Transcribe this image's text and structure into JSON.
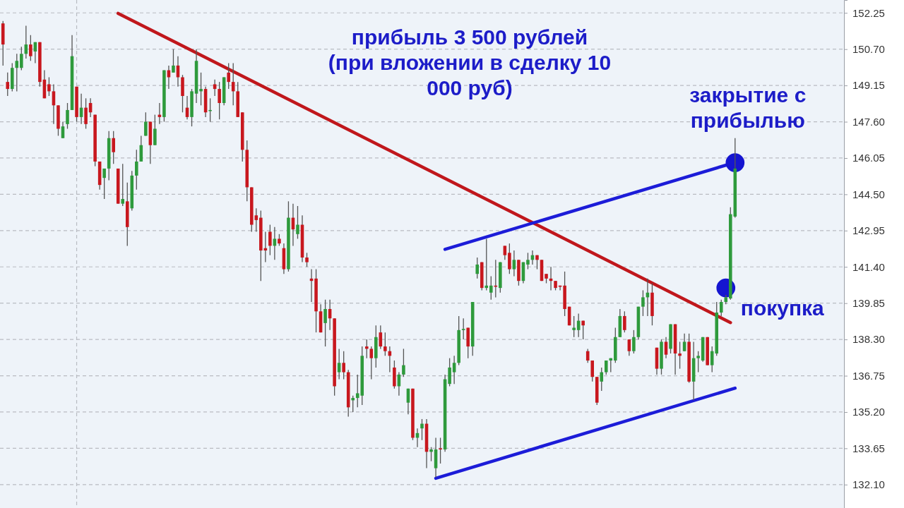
{
  "chart_data": {
    "type": "candlestick",
    "categories": [
      null,
      null,
      null,
      null,
      null,
      null,
      null,
      null,
      null,
      null,
      null,
      null,
      null,
      null,
      null,
      null,
      null,
      null,
      null,
      null,
      null,
      null,
      null,
      null,
      null,
      null,
      null,
      null,
      null,
      null,
      null,
      null,
      null,
      null,
      null,
      null,
      null,
      null,
      null,
      null,
      null,
      null,
      null,
      null,
      null,
      null,
      null,
      null,
      null,
      null,
      null,
      null,
      null,
      null,
      null,
      null,
      null,
      null,
      null,
      null,
      null,
      null,
      null,
      null,
      null,
      null,
      null,
      null,
      null,
      null,
      null,
      null,
      null,
      null,
      null,
      null,
      null,
      null,
      null,
      null,
      null,
      null,
      null,
      null,
      null,
      null,
      null,
      null,
      null,
      null,
      null,
      null,
      null,
      null,
      null,
      null,
      null,
      null,
      null,
      null,
      null,
      null,
      null,
      null,
      null,
      null,
      null,
      null,
      null,
      null,
      null,
      null,
      null,
      null,
      null,
      null,
      null,
      null,
      null,
      null,
      null,
      null,
      null,
      null,
      null,
      null,
      null,
      null,
      null,
      null,
      null,
      null,
      null,
      null,
      null,
      null,
      null,
      null,
      null,
      null,
      null,
      null,
      null,
      null,
      null,
      null,
      null,
      null,
      null,
      null,
      null,
      null,
      null,
      null,
      null,
      null,
      null,
      null,
      null,
      null,
      null,
      null,
      null,
      null,
      null,
      null,
      null,
      null,
      null,
      null,
      null,
      null,
      null,
      null,
      null,
      null,
      null,
      null,
      null,
      null,
      null,
      null,
      null
    ],
    "ohlc": [
      [
        151.8,
        151.9,
        150.0,
        150.9
      ],
      [
        149.3,
        149.7,
        148.7,
        149.0
      ],
      [
        149.0,
        150.1,
        148.9,
        149.9
      ],
      [
        149.9,
        150.5,
        148.9,
        150.2
      ],
      [
        149.9,
        150.8,
        149.8,
        150.5
      ],
      [
        150.5,
        151.7,
        150.3,
        150.9
      ],
      [
        150.9,
        151.3,
        150.2,
        150.4
      ],
      [
        150.6,
        151.0,
        150.1,
        151.0
      ],
      [
        151.0,
        151.0,
        149.1,
        149.3
      ],
      [
        149.4,
        149.8,
        148.6,
        148.6
      ],
      [
        149.2,
        149.5,
        148.7,
        148.9
      ],
      [
        148.9,
        149.2,
        147.5,
        148.3
      ],
      [
        148.3,
        148.3,
        147.0,
        147.3
      ],
      [
        146.9,
        147.6,
        146.9,
        147.4
      ],
      [
        147.5,
        148.4,
        147.3,
        148.1
      ],
      [
        148.1,
        151.3,
        148.1,
        150.4
      ],
      [
        149.1,
        149.1,
        147.6,
        147.8
      ],
      [
        147.8,
        148.8,
        147.5,
        148.2
      ],
      [
        148.2,
        148.6,
        147.3,
        147.5
      ],
      [
        148.4,
        148.6,
        147.8,
        148.0
      ],
      [
        147.9,
        147.9,
        145.7,
        145.9
      ],
      [
        145.9,
        145.9,
        144.7,
        144.9
      ],
      [
        145.2,
        145.6,
        144.3,
        145.6
      ],
      [
        145.6,
        147.2,
        145.1,
        146.9
      ],
      [
        146.9,
        147.2,
        145.8,
        146.3
      ],
      [
        145.6,
        145.6,
        144.1,
        144.1
      ],
      [
        144.1,
        145.8,
        144.0,
        144.3
      ],
      [
        144.2,
        145.0,
        142.3,
        143.1
      ],
      [
        143.9,
        145.5,
        143.8,
        145.3
      ],
      [
        145.3,
        146.4,
        144.7,
        145.9
      ],
      [
        145.9,
        147.0,
        145.9,
        146.6
      ],
      [
        147.0,
        148.0,
        147.0,
        147.6
      ],
      [
        147.6,
        147.6,
        145.8,
        146.6
      ],
      [
        146.6,
        147.9,
        146.6,
        147.3
      ],
      [
        147.9,
        148.4,
        147.5,
        147.8
      ],
      [
        147.8,
        149.8,
        147.6,
        149.8
      ],
      [
        149.8,
        150.0,
        149.0,
        149.5
      ],
      [
        149.7,
        150.7,
        149.7,
        150.0
      ],
      [
        150.0,
        150.4,
        149.1,
        149.5
      ],
      [
        149.5,
        149.6,
        148.0,
        148.7
      ],
      [
        148.2,
        148.7,
        147.7,
        147.8
      ],
      [
        147.8,
        149.0,
        147.4,
        148.9
      ],
      [
        148.8,
        150.7,
        148.4,
        150.2
      ],
      [
        148.9,
        149.7,
        148.3,
        149.0
      ],
      [
        149.0,
        149.1,
        147.8,
        148.0
      ],
      [
        148.1,
        148.6,
        147.6,
        148.1
      ],
      [
        149.2,
        149.4,
        148.7,
        149.0
      ],
      [
        149.0,
        149.3,
        147.7,
        148.4
      ],
      [
        148.4,
        149.5,
        148.3,
        149.5
      ],
      [
        149.7,
        150.1,
        149.0,
        149.3
      ],
      [
        149.3,
        150.1,
        148.3,
        148.9
      ],
      [
        148.9,
        149.3,
        147.8,
        147.8
      ],
      [
        148.0,
        148.0,
        145.9,
        146.4
      ],
      [
        146.4,
        146.8,
        144.2,
        144.8
      ],
      [
        144.8,
        144.8,
        142.9,
        143.2
      ],
      [
        143.6,
        143.9,
        142.9,
        143.4
      ],
      [
        143.5,
        143.8,
        140.8,
        142.1
      ],
      [
        142.2,
        142.9,
        141.6,
        142.1
      ],
      [
        142.9,
        143.2,
        141.9,
        142.3
      ],
      [
        142.3,
        143.1,
        141.7,
        142.6
      ],
      [
        142.6,
        142.8,
        142.3,
        142.4
      ],
      [
        142.2,
        142.4,
        141.1,
        141.3
      ],
      [
        141.3,
        144.2,
        141.2,
        143.5
      ],
      [
        143.5,
        144.1,
        142.3,
        143.0
      ],
      [
        142.8,
        144.0,
        142.6,
        143.2
      ],
      [
        143.2,
        143.6,
        141.6,
        141.8
      ],
      [
        141.8,
        142.0,
        141.4,
        141.6
      ],
      [
        140.9,
        141.3,
        139.9,
        140.8
      ],
      [
        140.9,
        141.3,
        138.6,
        139.5
      ],
      [
        139.5,
        139.8,
        138.6,
        138.6
      ],
      [
        139.0,
        140.0,
        138.0,
        139.6
      ],
      [
        139.6,
        140.0,
        138.7,
        139.2
      ],
      [
        139.2,
        139.2,
        135.9,
        136.3
      ],
      [
        136.9,
        137.9,
        136.6,
        137.3
      ],
      [
        137.3,
        137.8,
        136.6,
        136.9
      ],
      [
        136.9,
        137.0,
        135.0,
        135.4
      ],
      [
        135.7,
        135.9,
        135.2,
        135.8
      ],
      [
        135.8,
        136.8,
        135.4,
        136.0
      ],
      [
        135.9,
        138.0,
        135.5,
        137.6
      ],
      [
        138.0,
        138.3,
        137.5,
        137.9
      ],
      [
        137.9,
        138.0,
        136.6,
        137.5
      ],
      [
        137.5,
        138.9,
        137.1,
        138.4
      ],
      [
        138.6,
        138.9,
        137.9,
        138.0
      ],
      [
        138.0,
        138.6,
        137.6,
        137.8
      ],
      [
        137.8,
        138.0,
        136.9,
        137.6
      ],
      [
        137.1,
        137.4,
        136.2,
        136.3
      ],
      [
        136.3,
        136.9,
        135.9,
        136.8
      ],
      [
        136.8,
        137.9,
        136.7,
        137.2
      ],
      [
        135.6,
        136.2,
        135.1,
        136.2
      ],
      [
        136.2,
        136.2,
        134.0,
        134.1
      ],
      [
        134.1,
        134.5,
        133.7,
        134.3
      ],
      [
        134.5,
        134.9,
        134.0,
        134.7
      ],
      [
        134.7,
        134.9,
        132.8,
        133.5
      ],
      [
        133.5,
        133.7,
        133.1,
        133.6
      ],
      [
        132.8,
        134.1,
        132.4,
        133.6
      ],
      [
        133.65,
        134.1,
        133.0,
        133.6
      ],
      [
        133.6,
        136.8,
        133.5,
        136.6
      ],
      [
        136.4,
        137.5,
        136.3,
        137.1
      ],
      [
        136.9,
        137.6,
        136.4,
        137.3
      ],
      [
        137.3,
        139.3,
        137.2,
        138.7
      ],
      [
        138.7,
        139.2,
        138.3,
        138.75
      ],
      [
        138.8,
        138.8,
        137.5,
        138.0
      ],
      [
        138.0,
        139.9,
        137.6,
        139.9
      ],
      [
        141.1,
        141.8,
        140.9,
        141.5
      ],
      [
        141.6,
        141.6,
        140.4,
        140.5
      ],
      [
        140.5,
        142.6,
        140.4,
        140.6
      ],
      [
        140.3,
        141.0,
        140.0,
        140.6
      ],
      [
        140.6,
        141.7,
        140.1,
        140.55
      ],
      [
        140.5,
        141.6,
        140.3,
        141.6
      ],
      [
        142.3,
        142.3,
        141.7,
        141.9
      ],
      [
        142.0,
        142.4,
        141.1,
        141.3
      ],
      [
        141.3,
        142.1,
        141.0,
        141.7
      ],
      [
        141.7,
        141.7,
        140.6,
        140.8
      ],
      [
        140.8,
        141.6,
        140.7,
        141.6
      ],
      [
        141.5,
        142.0,
        141.3,
        141.7
      ],
      [
        141.7,
        142.1,
        141.5,
        141.9
      ],
      [
        141.9,
        141.9,
        141.3,
        141.7
      ],
      [
        141.7,
        141.7,
        140.8,
        140.8
      ],
      [
        141.1,
        141.1,
        140.7,
        140.9
      ],
      [
        140.9,
        141.4,
        140.4,
        140.8
      ],
      [
        140.8,
        140.8,
        140.4,
        140.5
      ],
      [
        140.6,
        140.6,
        140.4,
        140.55
      ],
      [
        140.6,
        141.2,
        139.3,
        139.6
      ],
      [
        139.7,
        139.7,
        138.9,
        138.9
      ],
      [
        138.7,
        139.3,
        138.4,
        138.8
      ],
      [
        138.7,
        139.4,
        138.4,
        139.1
      ],
      [
        139.1,
        139.1,
        138.3,
        138.9
      ],
      [
        137.8,
        137.9,
        137.3,
        137.4
      ],
      [
        137.4,
        137.4,
        136.5,
        136.7
      ],
      [
        136.7,
        136.7,
        135.5,
        135.6
      ],
      [
        136.5,
        137.1,
        136.1,
        136.9
      ],
      [
        136.9,
        137.4,
        136.8,
        137.4
      ],
      [
        137.4,
        137.5,
        136.9,
        137.5
      ],
      [
        137.4,
        138.8,
        137.3,
        138.4
      ],
      [
        138.4,
        139.6,
        138.4,
        139.3
      ],
      [
        139.3,
        139.5,
        138.6,
        138.7
      ],
      [
        138.3,
        138.3,
        137.6,
        137.8
      ],
      [
        137.8,
        138.7,
        137.7,
        138.4
      ],
      [
        138.4,
        139.7,
        138.3,
        139.7
      ],
      [
        139.7,
        140.4,
        139.3,
        140.1
      ],
      [
        140.1,
        140.9,
        139.3,
        140.3
      ],
      [
        140.3,
        140.7,
        138.9,
        139.3
      ],
      [
        137.95,
        137.95,
        136.8,
        137.05
      ],
      [
        137.05,
        138.3,
        136.8,
        138.2
      ],
      [
        138.2,
        138.4,
        137.5,
        137.65
      ],
      [
        137.9,
        138.95,
        137.7,
        138.95
      ],
      [
        138.95,
        138.95,
        136.8,
        137.7
      ],
      [
        137.7,
        138.2,
        137.05,
        137.6
      ],
      [
        137.8,
        138.55,
        137.8,
        138.2
      ],
      [
        138.2,
        138.55,
        136.45,
        136.5
      ],
      [
        136.5,
        138.2,
        135.7,
        137.5
      ],
      [
        137.5,
        137.8,
        136.9,
        137.6
      ],
      [
        137.4,
        138.4,
        137.35,
        138.4
      ],
      [
        138.4,
        138.4,
        137.2,
        137.2
      ],
      [
        137.2,
        138.0,
        136.9,
        137.8
      ],
      [
        137.7,
        139.9,
        137.6,
        139.45
      ],
      [
        139.45,
        140.0,
        139.3,
        139.9
      ],
      [
        139.9,
        140.2,
        139.8,
        140.1
      ],
      [
        140.05,
        143.95,
        140.0,
        143.65
      ],
      [
        143.55,
        146.9,
        143.5,
        145.6
      ],
      null,
      null,
      null,
      null,
      null,
      null,
      null,
      null,
      null,
      null,
      null,
      null,
      null,
      null,
      null,
      null,
      null,
      null,
      null,
      null,
      null,
      null,
      null
    ],
    "series": [
      {
        "type": "line",
        "color": "#c0171c",
        "values": [
          null,
          null,
          null,
          null,
          null,
          null,
          null,
          null,
          null,
          null,
          null,
          null,
          null,
          null,
          null,
          null,
          null,
          null,
          null,
          null,
          null,
          null,
          null,
          null,
          null,
          152.23,
          null,
          null,
          null,
          null,
          null,
          null,
          null,
          null,
          null,
          null,
          null,
          null,
          null,
          null,
          null,
          null,
          null,
          null,
          null,
          null,
          null,
          null,
          null,
          null,
          null,
          null,
          null,
          null,
          null,
          null,
          null,
          null,
          null,
          null,
          null,
          null,
          null,
          null,
          null,
          null,
          null,
          null,
          null,
          null,
          null,
          null,
          null,
          null,
          null,
          null,
          null,
          null,
          null,
          null,
          null,
          null,
          null,
          null,
          null,
          null,
          null,
          null,
          null,
          null,
          null,
          null,
          null,
          null,
          null,
          null,
          null,
          null,
          null,
          null,
          null,
          null,
          null,
          null,
          null,
          null,
          null,
          null,
          null,
          null,
          null,
          null,
          null,
          null,
          null,
          null,
          null,
          null,
          null,
          null,
          null,
          null,
          null,
          null,
          null,
          null,
          null,
          null,
          null,
          null,
          null,
          null,
          null,
          null,
          null,
          null,
          null,
          null,
          null,
          null,
          null,
          null,
          null,
          null,
          null,
          null,
          null,
          null,
          null,
          null,
          null,
          null,
          null,
          null,
          null,
          null,
          null,
          null,
          139.02,
          null,
          null,
          null,
          null,
          null,
          null,
          null,
          null,
          null,
          null,
          null,
          null,
          null,
          null,
          null,
          null,
          null,
          null,
          null,
          null,
          null,
          null,
          null,
          null
        ]
      },
      {
        "type": "line",
        "color": "#1c1cd8",
        "values": [
          null,
          null,
          null,
          null,
          null,
          null,
          null,
          null,
          null,
          null,
          null,
          null,
          null,
          null,
          null,
          null,
          null,
          null,
          null,
          null,
          null,
          null,
          null,
          null,
          null,
          null,
          null,
          null,
          null,
          null,
          null,
          null,
          null,
          null,
          null,
          null,
          null,
          null,
          null,
          null,
          null,
          null,
          null,
          null,
          null,
          null,
          null,
          null,
          null,
          null,
          null,
          null,
          null,
          null,
          null,
          null,
          null,
          null,
          null,
          null,
          null,
          null,
          null,
          null,
          null,
          null,
          null,
          null,
          null,
          null,
          null,
          null,
          null,
          null,
          null,
          null,
          null,
          null,
          null,
          null,
          null,
          null,
          null,
          null,
          null,
          null,
          null,
          null,
          null,
          null,
          null,
          null,
          null,
          null,
          null,
          null,
          142.15,
          null,
          null,
          null,
          null,
          null,
          null,
          null,
          null,
          null,
          null,
          null,
          null,
          null,
          null,
          null,
          null,
          null,
          null,
          null,
          null,
          null,
          null,
          null,
          null,
          null,
          null,
          null,
          null,
          null,
          null,
          null,
          null,
          null,
          null,
          null,
          null,
          null,
          null,
          null,
          null,
          null,
          null,
          null,
          null,
          null,
          null,
          null,
          null,
          null,
          null,
          null,
          null,
          null,
          null,
          null,
          null,
          null,
          null,
          null,
          null,
          null,
          null,
          145.86,
          null,
          null,
          null,
          null,
          null,
          null,
          null,
          null,
          null,
          null,
          null,
          null,
          null,
          null,
          null,
          null,
          null,
          null,
          null,
          null,
          null,
          null,
          null
        ]
      },
      {
        "type": "line",
        "color": "#1c1cd8",
        "values": [
          null,
          null,
          null,
          null,
          null,
          null,
          null,
          null,
          null,
          null,
          null,
          null,
          null,
          null,
          null,
          null,
          null,
          null,
          null,
          null,
          null,
          null,
          null,
          null,
          null,
          null,
          null,
          null,
          null,
          null,
          null,
          null,
          null,
          null,
          null,
          null,
          null,
          null,
          null,
          null,
          null,
          null,
          null,
          null,
          null,
          null,
          null,
          null,
          null,
          null,
          null,
          null,
          null,
          null,
          null,
          null,
          null,
          null,
          null,
          null,
          null,
          null,
          null,
          null,
          null,
          null,
          null,
          null,
          null,
          null,
          null,
          null,
          null,
          null,
          null,
          null,
          null,
          null,
          null,
          null,
          null,
          null,
          null,
          null,
          null,
          null,
          null,
          null,
          null,
          null,
          null,
          null,
          null,
          null,
          132.37,
          null,
          null,
          null,
          null,
          null,
          null,
          null,
          null,
          null,
          null,
          null,
          null,
          null,
          null,
          null,
          null,
          null,
          null,
          null,
          null,
          null,
          null,
          null,
          null,
          null,
          null,
          null,
          null,
          null,
          null,
          null,
          null,
          null,
          null,
          null,
          null,
          null,
          null,
          null,
          null,
          null,
          null,
          null,
          null,
          null,
          null,
          null,
          null,
          null,
          null,
          null,
          null,
          null,
          null,
          null,
          null,
          null,
          null,
          null,
          null,
          null,
          null,
          null,
          null,
          136.22,
          null,
          null,
          null,
          null,
          null,
          null,
          null,
          null,
          null,
          null,
          null,
          null,
          null,
          null,
          null,
          null,
          null,
          null,
          null,
          null,
          null,
          null,
          null
        ]
      },
      {
        "type": "scatter",
        "color": "#1515d0",
        "marker": "circle",
        "values": [
          null,
          null,
          null,
          null,
          null,
          null,
          null,
          null,
          null,
          null,
          null,
          null,
          null,
          null,
          null,
          null,
          null,
          null,
          null,
          null,
          null,
          null,
          null,
          null,
          null,
          null,
          null,
          null,
          null,
          null,
          null,
          null,
          null,
          null,
          null,
          null,
          null,
          null,
          null,
          null,
          null,
          null,
          null,
          null,
          null,
          null,
          null,
          null,
          null,
          null,
          null,
          null,
          null,
          null,
          null,
          null,
          null,
          null,
          null,
          null,
          null,
          null,
          null,
          null,
          null,
          null,
          null,
          null,
          null,
          null,
          null,
          null,
          null,
          null,
          null,
          null,
          null,
          null,
          null,
          null,
          null,
          null,
          null,
          null,
          null,
          null,
          null,
          null,
          null,
          null,
          null,
          null,
          null,
          null,
          null,
          null,
          null,
          null,
          null,
          null,
          null,
          null,
          null,
          null,
          null,
          null,
          null,
          null,
          null,
          null,
          null,
          null,
          null,
          null,
          null,
          null,
          null,
          null,
          null,
          null,
          null,
          null,
          null,
          null,
          null,
          null,
          null,
          null,
          null,
          null,
          null,
          null,
          null,
          null,
          null,
          null,
          null,
          null,
          null,
          null,
          null,
          null,
          null,
          null,
          null,
          null,
          null,
          null,
          null,
          null,
          null,
          null,
          null,
          null,
          null,
          null,
          null,
          140.5,
          null,
          145.85,
          null,
          null,
          null,
          null,
          null,
          null,
          null,
          null,
          null,
          null,
          null,
          null,
          null,
          null,
          null,
          null,
          null,
          null,
          null,
          null,
          null,
          null,
          null
        ]
      }
    ],
    "ylim": [
      131.1,
      152.8
    ],
    "yticks": [
      152.25,
      {
        "value": 150.7,
        "label": "150.70"
      },
      149.15,
      {
        "value": 147.6,
        "label": "147.60"
      },
      146.05,
      {
        "value": 144.5,
        "label": "144.50"
      },
      142.95,
      {
        "value": 141.4,
        "label": "141.40"
      },
      139.85,
      {
        "value": 138.3,
        "label": "138.30"
      },
      136.75,
      {
        "value": 135.2,
        "label": "135.20"
      },
      133.65,
      {
        "value": 132.1,
        "label": "132.10"
      }
    ],
    "tick_labels": "y",
    "grid": true,
    "line_style": "solid",
    "annotations": [
      "прибыль 3 500 рублей\n(при вложении в сделку 10\n000 руб)",
      "закрытие с\nприбылью",
      "покупка"
    ]
  }
}
